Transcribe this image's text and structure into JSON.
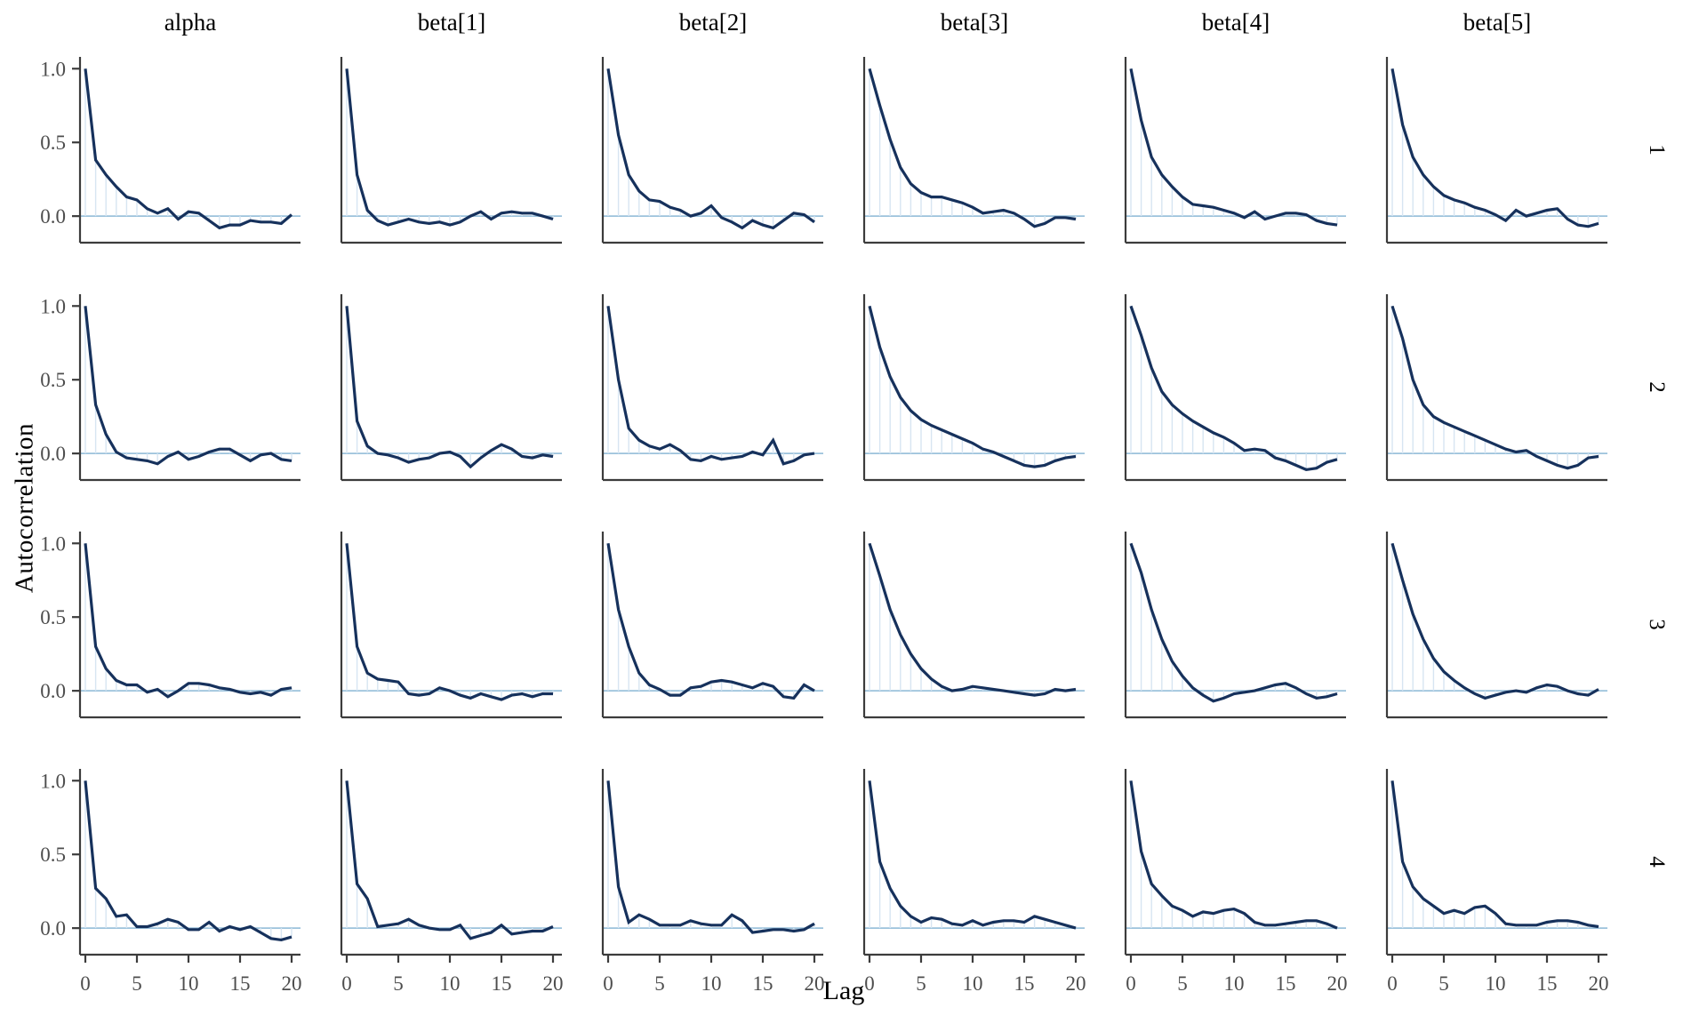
{
  "figure": {
    "kind": "mcmc-autocorrelation-facet-grid",
    "ylabel": "Autocorrelation",
    "xlabel": "Lag"
  },
  "colors": {
    "acf_line": "#16315c",
    "lag_segment": "#d7e5f2",
    "zero_line": "#9cc2dc",
    "axis_line": "#3c3c3c",
    "tick_label": "#4d4d4d",
    "text": "#000000",
    "background": "#ffffff"
  },
  "chart_data": {
    "type": "line",
    "subtype": "autocorrelation-grid",
    "title": "",
    "xlabel": "Lag",
    "ylabel": "Autocorrelation",
    "col_titles": [
      "alpha",
      "beta[1]",
      "beta[2]",
      "beta[3]",
      "beta[4]",
      "beta[5]"
    ],
    "row_titles": [
      "1",
      "2",
      "3",
      "4"
    ],
    "x": [
      0,
      1,
      2,
      3,
      4,
      5,
      6,
      7,
      8,
      9,
      10,
      11,
      12,
      13,
      14,
      15,
      16,
      17,
      18,
      19,
      20
    ],
    "x_tick_values": [
      0,
      5,
      10,
      15,
      20
    ],
    "x_tick_labels": [
      "0",
      "5",
      "10",
      "15",
      "20"
    ],
    "y_tick_values": [
      1.0,
      0.5,
      0.0
    ],
    "y_tick_labels": [
      "1.0",
      "0.5",
      "0.0"
    ],
    "xlim": [
      -0.6,
      20.6
    ],
    "ylim": [
      -0.18,
      1.08
    ],
    "grid": "off",
    "legend": "none",
    "rows": [
      {
        "label": "1",
        "series": [
          {
            "param": "alpha",
            "values": [
              1.0,
              0.38,
              0.28,
              0.2,
              0.13,
              0.11,
              0.05,
              0.02,
              0.05,
              -0.02,
              0.03,
              0.02,
              -0.03,
              -0.08,
              -0.06,
              -0.06,
              -0.03,
              -0.04,
              -0.04,
              -0.05,
              0.01
            ]
          },
          {
            "param": "beta[1]",
            "values": [
              1.0,
              0.28,
              0.04,
              -0.03,
              -0.06,
              -0.04,
              -0.02,
              -0.04,
              -0.05,
              -0.04,
              -0.06,
              -0.04,
              0.0,
              0.03,
              -0.02,
              0.02,
              0.03,
              0.02,
              0.02,
              0.0,
              -0.02
            ]
          },
          {
            "param": "beta[2]",
            "values": [
              1.0,
              0.55,
              0.28,
              0.17,
              0.11,
              0.1,
              0.06,
              0.04,
              0.0,
              0.02,
              0.07,
              -0.01,
              -0.04,
              -0.08,
              -0.03,
              -0.06,
              -0.08,
              -0.03,
              0.02,
              0.01,
              -0.04
            ]
          },
          {
            "param": "beta[3]",
            "values": [
              1.0,
              0.75,
              0.52,
              0.33,
              0.22,
              0.16,
              0.13,
              0.13,
              0.11,
              0.09,
              0.06,
              0.02,
              0.03,
              0.04,
              0.02,
              -0.02,
              -0.07,
              -0.05,
              -0.01,
              -0.01,
              -0.02
            ]
          },
          {
            "param": "beta[4]",
            "values": [
              1.0,
              0.65,
              0.4,
              0.28,
              0.2,
              0.13,
              0.08,
              0.07,
              0.06,
              0.04,
              0.02,
              -0.01,
              0.03,
              -0.02,
              0.0,
              0.02,
              0.02,
              0.01,
              -0.03,
              -0.05,
              -0.06
            ]
          },
          {
            "param": "beta[5]",
            "values": [
              1.0,
              0.62,
              0.4,
              0.28,
              0.2,
              0.14,
              0.11,
              0.09,
              0.06,
              0.04,
              0.01,
              -0.03,
              0.04,
              0.0,
              0.02,
              0.04,
              0.05,
              -0.02,
              -0.06,
              -0.07,
              -0.05
            ]
          }
        ]
      },
      {
        "label": "2",
        "series": [
          {
            "param": "alpha",
            "values": [
              1.0,
              0.33,
              0.13,
              0.01,
              -0.03,
              -0.04,
              -0.05,
              -0.07,
              -0.02,
              0.01,
              -0.04,
              -0.02,
              0.01,
              0.03,
              0.03,
              -0.01,
              -0.05,
              -0.01,
              0.0,
              -0.04,
              -0.05
            ]
          },
          {
            "param": "beta[1]",
            "values": [
              1.0,
              0.22,
              0.05,
              0.0,
              -0.01,
              -0.03,
              -0.06,
              -0.04,
              -0.03,
              0.0,
              0.01,
              -0.02,
              -0.09,
              -0.03,
              0.02,
              0.06,
              0.03,
              -0.02,
              -0.03,
              -0.01,
              -0.02
            ]
          },
          {
            "param": "beta[2]",
            "values": [
              1.0,
              0.5,
              0.17,
              0.09,
              0.05,
              0.03,
              0.06,
              0.02,
              -0.04,
              -0.05,
              -0.02,
              -0.04,
              -0.03,
              -0.02,
              0.01,
              -0.01,
              0.09,
              -0.07,
              -0.05,
              -0.01,
              0.0
            ]
          },
          {
            "param": "beta[3]",
            "values": [
              1.0,
              0.72,
              0.52,
              0.38,
              0.29,
              0.23,
              0.19,
              0.16,
              0.13,
              0.1,
              0.07,
              0.03,
              0.01,
              -0.02,
              -0.05,
              -0.08,
              -0.09,
              -0.08,
              -0.05,
              -0.03,
              -0.02
            ]
          },
          {
            "param": "beta[4]",
            "values": [
              1.0,
              0.8,
              0.58,
              0.42,
              0.33,
              0.27,
              0.22,
              0.18,
              0.14,
              0.11,
              0.07,
              0.02,
              0.03,
              0.02,
              -0.03,
              -0.05,
              -0.08,
              -0.11,
              -0.1,
              -0.06,
              -0.04
            ]
          },
          {
            "param": "beta[5]",
            "values": [
              1.0,
              0.78,
              0.5,
              0.33,
              0.25,
              0.21,
              0.18,
              0.15,
              0.12,
              0.09,
              0.06,
              0.03,
              0.01,
              0.02,
              -0.02,
              -0.05,
              -0.08,
              -0.1,
              -0.08,
              -0.03,
              -0.02
            ]
          }
        ]
      },
      {
        "label": "3",
        "series": [
          {
            "param": "alpha",
            "values": [
              1.0,
              0.3,
              0.15,
              0.07,
              0.04,
              0.04,
              -0.01,
              0.01,
              -0.04,
              0.0,
              0.05,
              0.05,
              0.04,
              0.02,
              0.01,
              -0.01,
              -0.02,
              -0.01,
              -0.03,
              0.01,
              0.02
            ]
          },
          {
            "param": "beta[1]",
            "values": [
              1.0,
              0.3,
              0.12,
              0.08,
              0.07,
              0.06,
              -0.02,
              -0.03,
              -0.02,
              0.02,
              0.0,
              -0.03,
              -0.05,
              -0.02,
              -0.04,
              -0.06,
              -0.03,
              -0.02,
              -0.04,
              -0.02,
              -0.02
            ]
          },
          {
            "param": "beta[2]",
            "values": [
              1.0,
              0.55,
              0.3,
              0.12,
              0.04,
              0.01,
              -0.03,
              -0.03,
              0.02,
              0.03,
              0.06,
              0.07,
              0.06,
              0.04,
              0.02,
              0.05,
              0.03,
              -0.04,
              -0.05,
              0.04,
              0.0
            ]
          },
          {
            "param": "beta[3]",
            "values": [
              1.0,
              0.78,
              0.55,
              0.38,
              0.25,
              0.15,
              0.08,
              0.03,
              0.0,
              0.01,
              0.03,
              0.02,
              0.01,
              0.0,
              -0.01,
              -0.02,
              -0.03,
              -0.02,
              0.01,
              0.0,
              0.01
            ]
          },
          {
            "param": "beta[4]",
            "values": [
              1.0,
              0.8,
              0.55,
              0.35,
              0.2,
              0.1,
              0.02,
              -0.03,
              -0.07,
              -0.05,
              -0.02,
              -0.01,
              0.0,
              0.02,
              0.04,
              0.05,
              0.02,
              -0.02,
              -0.05,
              -0.04,
              -0.02
            ]
          },
          {
            "param": "beta[5]",
            "values": [
              1.0,
              0.75,
              0.52,
              0.35,
              0.22,
              0.13,
              0.07,
              0.02,
              -0.02,
              -0.05,
              -0.03,
              -0.01,
              0.0,
              -0.01,
              0.02,
              0.04,
              0.03,
              0.0,
              -0.02,
              -0.03,
              0.01
            ]
          }
        ]
      },
      {
        "label": "4",
        "series": [
          {
            "param": "alpha",
            "values": [
              1.0,
              0.27,
              0.2,
              0.08,
              0.09,
              0.01,
              0.01,
              0.03,
              0.06,
              0.04,
              -0.01,
              -0.01,
              0.04,
              -0.02,
              0.01,
              -0.01,
              0.01,
              -0.03,
              -0.07,
              -0.08,
              -0.06
            ]
          },
          {
            "param": "beta[1]",
            "values": [
              1.0,
              0.3,
              0.2,
              0.01,
              0.02,
              0.03,
              0.06,
              0.02,
              0.0,
              -0.01,
              -0.01,
              0.02,
              -0.07,
              -0.05,
              -0.03,
              0.02,
              -0.04,
              -0.03,
              -0.02,
              -0.02,
              0.01
            ]
          },
          {
            "param": "beta[2]",
            "values": [
              1.0,
              0.28,
              0.04,
              0.09,
              0.06,
              0.02,
              0.02,
              0.02,
              0.05,
              0.03,
              0.02,
              0.02,
              0.09,
              0.05,
              -0.03,
              -0.02,
              -0.01,
              -0.01,
              -0.02,
              -0.01,
              0.03
            ]
          },
          {
            "param": "beta[3]",
            "values": [
              1.0,
              0.45,
              0.27,
              0.15,
              0.08,
              0.04,
              0.07,
              0.06,
              0.03,
              0.02,
              0.05,
              0.02,
              0.04,
              0.05,
              0.05,
              0.04,
              0.08,
              0.06,
              0.04,
              0.02,
              0.0
            ]
          },
          {
            "param": "beta[4]",
            "values": [
              1.0,
              0.52,
              0.3,
              0.22,
              0.15,
              0.12,
              0.08,
              0.11,
              0.1,
              0.12,
              0.13,
              0.1,
              0.04,
              0.02,
              0.02,
              0.03,
              0.04,
              0.05,
              0.05,
              0.03,
              0.0
            ]
          },
          {
            "param": "beta[5]",
            "values": [
              1.0,
              0.45,
              0.28,
              0.2,
              0.15,
              0.1,
              0.12,
              0.1,
              0.14,
              0.15,
              0.1,
              0.03,
              0.02,
              0.02,
              0.02,
              0.04,
              0.05,
              0.05,
              0.04,
              0.02,
              0.01
            ]
          }
        ]
      }
    ]
  }
}
